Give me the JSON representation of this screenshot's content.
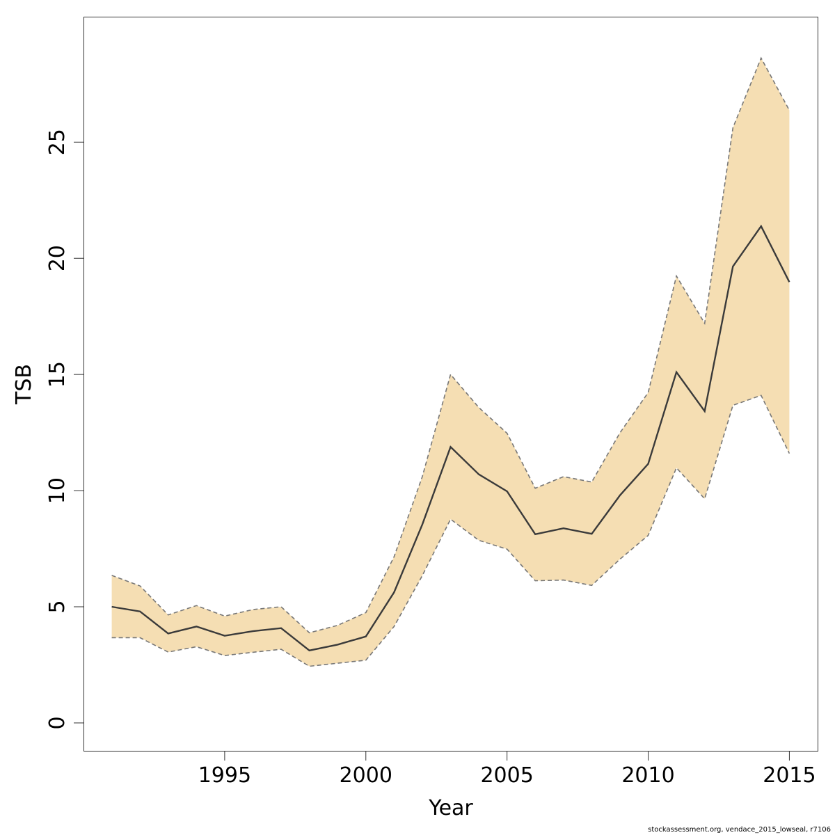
{
  "chart_data": {
    "type": "line",
    "xlabel": "Year",
    "ylabel": "TSB",
    "xlim": [
      1990,
      2016
    ],
    "ylim": [
      -1.2,
      30.4
    ],
    "x_ticks": [
      1995,
      2000,
      2005,
      2010,
      2015
    ],
    "y_ticks": [
      0,
      5,
      10,
      15,
      20,
      25
    ],
    "grid": false,
    "band_color": "#F5DEB3",
    "line_color": "#3a3a3a",
    "bound_color": "#777777",
    "x": [
      1991,
      1992,
      1993,
      1994,
      1995,
      1996,
      1997,
      1998,
      1999,
      2000,
      2001,
      2002,
      2003,
      2004,
      2005,
      2006,
      2007,
      2008,
      2009,
      2010,
      2011,
      2012,
      2013,
      2014,
      2015
    ],
    "series": [
      {
        "values": [
          5.0,
          4.8,
          3.85,
          4.15,
          3.75,
          3.95,
          4.08,
          3.12,
          3.37,
          3.72,
          5.62,
          8.54,
          11.88,
          10.7,
          9.97,
          8.12,
          8.38,
          8.14,
          9.8,
          11.15,
          15.1,
          13.42,
          19.65,
          21.38,
          18.98
        ]
      },
      {
        "values": [
          6.35,
          5.9,
          4.65,
          5.05,
          4.6,
          4.88,
          5.0,
          3.88,
          4.2,
          4.75,
          7.15,
          10.6,
          15.0,
          13.58,
          12.47,
          10.1,
          10.6,
          10.37,
          12.49,
          14.22,
          19.24,
          17.2,
          25.62,
          28.62,
          26.37
        ]
      },
      {
        "values": [
          3.67,
          3.67,
          3.05,
          3.28,
          2.9,
          3.04,
          3.17,
          2.44,
          2.57,
          2.7,
          4.15,
          6.34,
          8.77,
          7.86,
          7.48,
          6.12,
          6.15,
          5.92,
          7.05,
          8.07,
          10.98,
          9.65,
          13.67,
          14.1,
          11.6
        ]
      }
    ]
  },
  "footnote": "stockassessment.org, vendace_2015_lowseal, r7106"
}
